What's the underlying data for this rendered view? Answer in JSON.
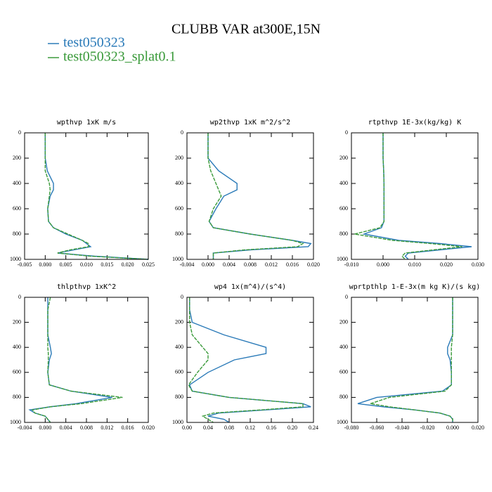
{
  "title": "CLUBB VAR at300E,15N",
  "chart_data": [
    {
      "type": "line",
      "title": "wpthvp  1xK m/s",
      "y": [
        0,
        100,
        200,
        300,
        400,
        450,
        500,
        600,
        700,
        750,
        800,
        850,
        875,
        900,
        925,
        950,
        975,
        1000
      ],
      "series": [
        {
          "name": "test050323",
          "color": "#2a7ab8",
          "values": [
            0,
            0,
            0,
            0.0005,
            0.002,
            0.002,
            0.0012,
            0.0006,
            0.0008,
            0.002,
            0.005,
            0.009,
            0.01,
            0.011,
            0.007,
            0.003,
            0.012,
            0.025
          ]
        },
        {
          "name": "test050323_splat0.1",
          "color": "#3a9a3a",
          "values": [
            0,
            0,
            0,
            0,
            0.001,
            0.0012,
            0.001,
            0.0006,
            0.0008,
            0.002,
            0.0055,
            0.009,
            0.0105,
            0.0105,
            0.006,
            0.003,
            0.011,
            0.025
          ]
        }
      ],
      "xlim": [
        -0.005,
        0.025
      ],
      "xticks": [
        -0.005,
        {
          "value": 0,
          "label": "0.000"
        },
        0.005,
        {
          "value": 0.01,
          "label": "0.010"
        },
        0.015,
        {
          "value": 0.02,
          "label": "0.020"
        },
        0.025
      ],
      "ylim": [
        1000,
        0
      ],
      "yticks": [
        0,
        200,
        400,
        600,
        800,
        1000
      ]
    },
    {
      "type": "line",
      "title": "wp2thvp  1xK m^2/s^2",
      "y": [
        0,
        100,
        200,
        300,
        400,
        450,
        500,
        600,
        700,
        750,
        800,
        850,
        875,
        900,
        925,
        950,
        975,
        1000
      ],
      "series": [
        {
          "name": "test050323",
          "color": "#2a7ab8",
          "values": [
            0,
            0,
            0,
            0.002,
            0.0055,
            0.0055,
            0.003,
            0.0015,
            0.0002,
            0.001,
            0.008,
            0.016,
            0.0195,
            0.019,
            0.008,
            0.001,
            0.001,
            0.001
          ]
        },
        {
          "name": "test050323_splat0.1",
          "color": "#3a9a3a",
          "values": [
            0,
            0,
            0,
            0.0005,
            0.0015,
            0.002,
            0.0025,
            0.001,
            0.0002,
            0.001,
            0.008,
            0.016,
            0.018,
            0.017,
            0.007,
            0.001,
            0.001,
            0.001
          ]
        }
      ],
      "xlim": [
        -0.004,
        0.02
      ],
      "xticks": [
        -0.004,
        {
          "value": 0,
          "label": "0.000"
        },
        0.004,
        0.008,
        0.012,
        0.016,
        {
          "value": 0.02,
          "label": "0.020"
        }
      ],
      "ylim": [
        1000,
        0
      ],
      "yticks": [
        0,
        200,
        400,
        600,
        800,
        1000
      ]
    },
    {
      "type": "line",
      "title": "rtpthvp  1E-3x(kg/kg) K",
      "y": [
        0,
        100,
        200,
        300,
        400,
        450,
        500,
        600,
        700,
        750,
        800,
        850,
        875,
        900,
        925,
        950,
        975,
        1000
      ],
      "series": [
        {
          "name": "test050323",
          "color": "#2a7ab8",
          "values": [
            0,
            0,
            0,
            0.0002,
            0.0003,
            0.0003,
            0.0003,
            0.0003,
            0.0003,
            -0.0005,
            -0.006,
            0.005,
            0.018,
            0.028,
            0.018,
            0.008,
            0.007,
            0.008
          ]
        },
        {
          "name": "test050323_splat0.1",
          "color": "#3a9a3a",
          "values": [
            0,
            0,
            0,
            0.0002,
            0.0003,
            0.0003,
            0.0003,
            0.0003,
            0.0003,
            -0.001,
            -0.009,
            0.003,
            0.015,
            0.025,
            0.016,
            0.007,
            0.006,
            0.007
          ]
        }
      ],
      "xlim": [
        -0.01,
        0.03
      ],
      "xticks": [
        {
          "value": -0.01,
          "label": "-0.010"
        },
        {
          "value": 0,
          "label": "0.000"
        },
        {
          "value": 0.01,
          "label": "0.010"
        },
        {
          "value": 0.02,
          "label": "0.020"
        },
        {
          "value": 0.03,
          "label": "0.030"
        }
      ],
      "ylim": [
        1000,
        0
      ],
      "yticks": [
        0,
        200,
        400,
        600,
        800,
        1000
      ]
    },
    {
      "type": "line",
      "title": "thlpthvp  1xK^2",
      "y": [
        0,
        100,
        200,
        300,
        400,
        450,
        500,
        600,
        700,
        750,
        800,
        850,
        875,
        900,
        925,
        950,
        975,
        1000
      ],
      "series": [
        {
          "name": "test050323",
          "color": "#2a7ab8",
          "values": [
            0.0005,
            0.0005,
            0.0005,
            0.0005,
            0.001,
            0.0012,
            0.0008,
            0.0005,
            0.0008,
            0.005,
            0.013,
            0.006,
            0.001,
            -0.003,
            -0.002,
            0,
            0.0005,
            0.001
          ]
        },
        {
          "name": "test050323_splat0.1",
          "color": "#3a9a3a",
          "values": [
            0.001,
            0.0005,
            0.0005,
            0.0005,
            0.0005,
            0.0006,
            0.0006,
            0.0005,
            0.0008,
            0.005,
            0.015,
            0.007,
            0.001,
            -0.0025,
            -0.002,
            0,
            0.0005,
            0.001
          ]
        }
      ],
      "xlim": [
        -0.004,
        0.02
      ],
      "xticks": [
        -0.004,
        {
          "value": 0,
          "label": "0.000"
        },
        0.004,
        0.008,
        0.012,
        0.016,
        {
          "value": 0.02,
          "label": "0.020"
        }
      ],
      "ylim": [
        1000,
        0
      ],
      "yticks": [
        0,
        200,
        400,
        600,
        800,
        1000
      ]
    },
    {
      "type": "line",
      "title": "wp4  1x(m^4)/(s^4)",
      "y": [
        0,
        100,
        200,
        300,
        400,
        450,
        500,
        600,
        700,
        750,
        800,
        850,
        875,
        900,
        925,
        950,
        975,
        1000
      ],
      "series": [
        {
          "name": "test050323",
          "color": "#2a7ab8",
          "values": [
            0.005,
            0.005,
            0.01,
            0.07,
            0.15,
            0.15,
            0.09,
            0.04,
            0.005,
            0.01,
            0.08,
            0.22,
            0.235,
            0.15,
            0.06,
            0.04,
            0.07,
            0.08
          ]
        },
        {
          "name": "test050323_splat0.1",
          "color": "#3a9a3a",
          "values": [
            0.005,
            0.005,
            0.005,
            0.01,
            0.03,
            0.04,
            0.04,
            0.02,
            0.003,
            0.01,
            0.08,
            0.22,
            0.22,
            0.14,
            0.05,
            0.03,
            0.04,
            0.05
          ]
        }
      ],
      "xlim": [
        0,
        0.24
      ],
      "xticks": [
        {
          "value": 0,
          "label": "0.00"
        },
        0.04,
        0.08,
        0.12,
        0.16,
        {
          "value": 0.2,
          "label": "0.20"
        },
        0.24
      ],
      "ylim": [
        1000,
        0
      ],
      "yticks": [
        0,
        200,
        400,
        600,
        800,
        1000
      ]
    },
    {
      "type": "line",
      "title": "wprtpthlp  1-E-3x(m kg K)/(s kg)",
      "y": [
        0,
        100,
        200,
        300,
        400,
        450,
        500,
        600,
        700,
        750,
        800,
        850,
        875,
        900,
        925,
        950,
        975,
        1000
      ],
      "series": [
        {
          "name": "test050323",
          "color": "#2a7ab8",
          "values": [
            0,
            0,
            0,
            0,
            -0.004,
            -0.004,
            -0.002,
            -0.001,
            -0.001,
            -0.008,
            -0.06,
            -0.075,
            -0.055,
            -0.03,
            -0.01,
            -0.002,
            0,
            0
          ]
        },
        {
          "name": "test050323_splat0.1",
          "color": "#3a9a3a",
          "values": [
            0,
            0,
            0,
            0,
            -0.001,
            -0.001,
            -0.001,
            -0.001,
            -0.001,
            -0.006,
            -0.05,
            -0.065,
            -0.05,
            -0.03,
            -0.01,
            -0.002,
            0,
            0
          ]
        }
      ],
      "xlim": [
        -0.08,
        0.02
      ],
      "xticks": [
        {
          "value": -0.08,
          "label": "-0.080"
        },
        {
          "value": -0.06,
          "label": "-0.060"
        },
        {
          "value": -0.04,
          "label": "-0.040"
        },
        {
          "value": -0.02,
          "label": "-0.020"
        },
        {
          "value": 0,
          "label": "0.000"
        },
        {
          "value": 0.02,
          "label": "0.020"
        }
      ],
      "ylim": [
        1000,
        0
      ],
      "yticks": [
        0,
        200,
        400,
        600,
        800,
        1000
      ]
    }
  ]
}
